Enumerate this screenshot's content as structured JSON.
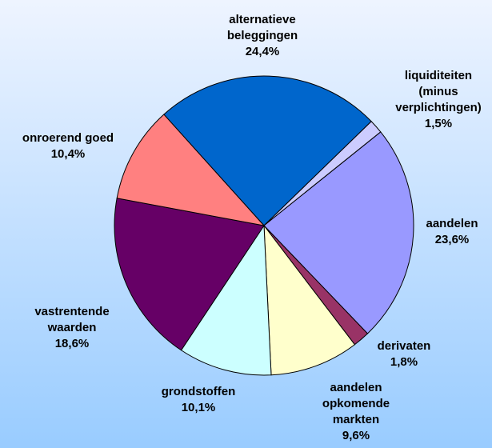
{
  "chart_data": {
    "type": "pie",
    "categories": [
      "alternatieve beleggingen",
      "liquiditeiten (minus verplichtingen)",
      "aandelen",
      "derivaten",
      "aandelen opkomende markten",
      "grondstoffen",
      "vastrentende waarden",
      "onroerend goed"
    ],
    "values": [
      24.4,
      1.5,
      23.6,
      1.8,
      9.6,
      10.1,
      18.6,
      10.4
    ],
    "value_labels": [
      "24,4%",
      "1,5%",
      "23,6%",
      "1,8%",
      "9,6%",
      "10,1%",
      "18,6%",
      "10,4%"
    ],
    "colors": [
      "#0066cc",
      "#ccccff",
      "#9999ff",
      "#993366",
      "#ffffcc",
      "#ccffff",
      "#660066",
      "#ff8080"
    ]
  }
}
